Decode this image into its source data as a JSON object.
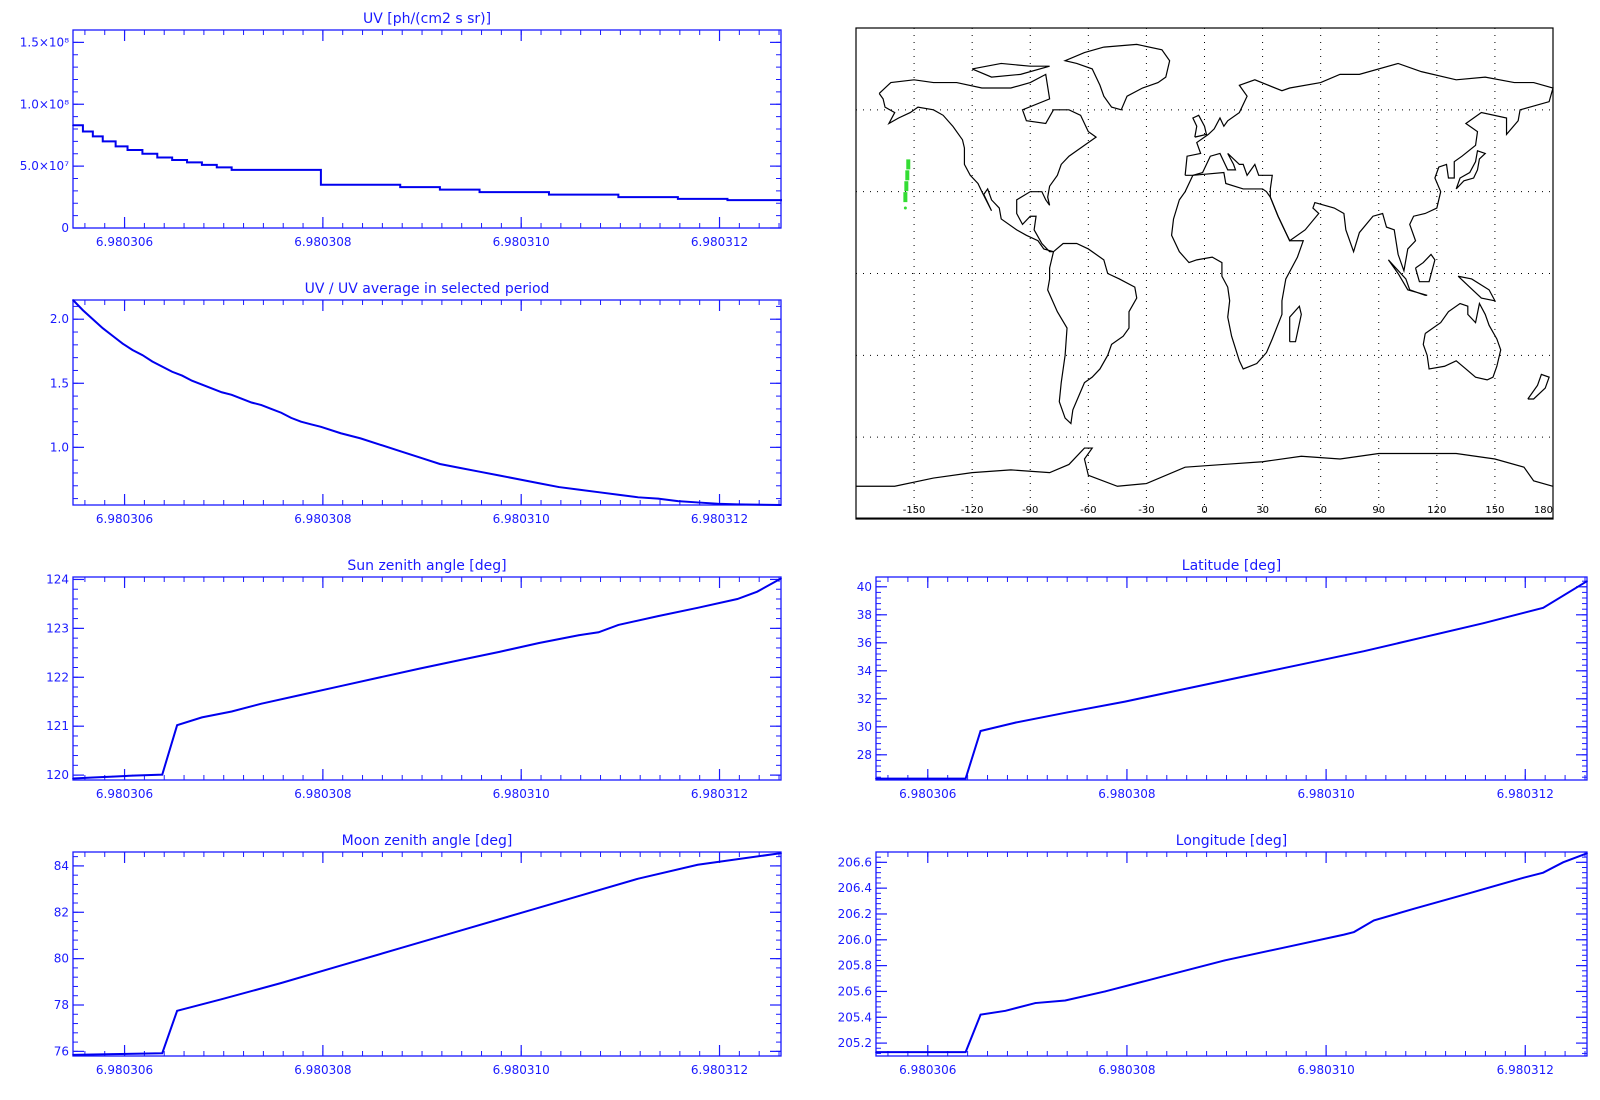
{
  "chart_data": [
    {
      "id": "uv",
      "type": "line",
      "title": "UV [ph/(cm2 s sr)]",
      "xlim": [
        6.98030548,
        6.98031262
      ],
      "ylim": [
        0,
        160000000
      ],
      "xticks": [
        6.980306,
        6.980308,
        6.98031,
        6.980312
      ],
      "xtick_labels": [
        "6.980306",
        "6.980308",
        "6.980310",
        "6.980312"
      ],
      "yticks": [
        0,
        50000000,
        100000000,
        150000000
      ],
      "ytick_labels": [
        "0",
        "5.0×10⁷",
        "1.0×10⁸",
        "1.5×10⁸"
      ],
      "step": true,
      "series": [
        {
          "values": [
            [
              6.98030548,
              83000000
            ],
            [
              6.98030558,
              78000000
            ],
            [
              6.98030568,
              74000000
            ],
            [
              6.98030578,
              70000000
            ],
            [
              6.98030591,
              66000000
            ],
            [
              6.98030603,
              63000000
            ],
            [
              6.98030618,
              60000000
            ],
            [
              6.98030633,
              57000000
            ],
            [
              6.98030648,
              55000000
            ],
            [
              6.98030663,
              53000000
            ],
            [
              6.98030678,
              51000000
            ],
            [
              6.98030693,
              49000000
            ],
            [
              6.98030708,
              47000000
            ],
            [
              6.98030798,
              35000000
            ],
            [
              6.98030878,
              33000000
            ],
            [
              6.98030918,
              31000000
            ],
            [
              6.98030958,
              29000000
            ],
            [
              6.98031028,
              27000000
            ],
            [
              6.98031098,
              25000000
            ],
            [
              6.98031158,
              23500000
            ],
            [
              6.98031208,
              22500000
            ],
            [
              6.98031262,
              22000000
            ]
          ]
        }
      ]
    },
    {
      "id": "uv_ratio",
      "type": "line",
      "title": "UV / UV average in selected period",
      "xlim": [
        6.98030548,
        6.98031262
      ],
      "ylim": [
        0.55,
        2.15
      ],
      "xticks": [
        6.980306,
        6.980308,
        6.98031,
        6.980312
      ],
      "xtick_labels": [
        "6.980306",
        "6.980308",
        "6.980310",
        "6.980312"
      ],
      "yticks": [
        1.0,
        1.5,
        2.0
      ],
      "ytick_labels": [
        "1.0",
        "1.5",
        "2.0"
      ],
      "series": [
        {
          "values": [
            [
              6.98030548,
              2.15
            ],
            [
              6.98030558,
              2.07
            ],
            [
              6.98030568,
              2.0
            ],
            [
              6.98030578,
              1.93
            ],
            [
              6.98030588,
              1.87
            ],
            [
              6.98030598,
              1.81
            ],
            [
              6.98030608,
              1.76
            ],
            [
              6.98030618,
              1.72
            ],
            [
              6.98030628,
              1.67
            ],
            [
              6.98030638,
              1.63
            ],
            [
              6.98030648,
              1.59
            ],
            [
              6.98030658,
              1.56
            ],
            [
              6.98030668,
              1.52
            ],
            [
              6.98030678,
              1.49
            ],
            [
              6.98030688,
              1.46
            ],
            [
              6.98030698,
              1.43
            ],
            [
              6.98030708,
              1.41
            ],
            [
              6.98030718,
              1.38
            ],
            [
              6.98030728,
              1.35
            ],
            [
              6.98030738,
              1.33
            ],
            [
              6.98030748,
              1.3
            ],
            [
              6.98030758,
              1.27
            ],
            [
              6.98030768,
              1.23
            ],
            [
              6.98030778,
              1.2
            ],
            [
              6.98030788,
              1.18
            ],
            [
              6.98030798,
              1.16
            ],
            [
              6.98030818,
              1.11
            ],
            [
              6.98030838,
              1.07
            ],
            [
              6.98030858,
              1.02
            ],
            [
              6.98030878,
              0.97
            ],
            [
              6.98030898,
              0.92
            ],
            [
              6.98030918,
              0.87
            ],
            [
              6.98030938,
              0.84
            ],
            [
              6.98030958,
              0.81
            ],
            [
              6.98030978,
              0.78
            ],
            [
              6.98030998,
              0.75
            ],
            [
              6.98031018,
              0.72
            ],
            [
              6.98031038,
              0.69
            ],
            [
              6.98031058,
              0.67
            ],
            [
              6.98031078,
              0.65
            ],
            [
              6.98031098,
              0.63
            ],
            [
              6.98031118,
              0.61
            ],
            [
              6.98031138,
              0.6
            ],
            [
              6.98031158,
              0.58
            ],
            [
              6.98031178,
              0.57
            ],
            [
              6.98031198,
              0.56
            ],
            [
              6.98031218,
              0.555
            ],
            [
              6.98031262,
              0.55
            ]
          ]
        }
      ]
    },
    {
      "id": "sun_zenith",
      "type": "line",
      "title": "Sun zenith angle [deg]",
      "xlim": [
        6.98030548,
        6.98031262
      ],
      "ylim": [
        119.9,
        124.05
      ],
      "xticks": [
        6.980306,
        6.980308,
        6.98031,
        6.980312
      ],
      "xtick_labels": [
        "6.980306",
        "6.980308",
        "6.980310",
        "6.980312"
      ],
      "yticks": [
        120,
        121,
        122,
        123,
        124
      ],
      "ytick_labels": [
        "120",
        "121",
        "122",
        "123",
        "124"
      ],
      "series": [
        {
          "values": [
            [
              6.98030548,
              119.93
            ],
            [
              6.98030568,
              119.95
            ],
            [
              6.98030588,
              119.97
            ],
            [
              6.98030608,
              119.99
            ],
            [
              6.98030638,
              120.01
            ],
            [
              6.98030653,
              121.02
            ],
            [
              6.98030678,
              121.18
            ],
            [
              6.98030708,
              121.3
            ],
            [
              6.98030738,
              121.46
            ],
            [
              6.98030778,
              121.64
            ],
            [
              6.98030818,
              121.82
            ],
            [
              6.98030858,
              122.0
            ],
            [
              6.98030898,
              122.18
            ],
            [
              6.98030938,
              122.35
            ],
            [
              6.98030978,
              122.52
            ],
            [
              6.98031018,
              122.7
            ],
            [
              6.98031058,
              122.86
            ],
            [
              6.98031078,
              122.92
            ],
            [
              6.98031098,
              123.07
            ],
            [
              6.98031138,
              123.25
            ],
            [
              6.98031178,
              123.42
            ],
            [
              6.98031218,
              123.6
            ],
            [
              6.98031238,
              123.75
            ],
            [
              6.98031262,
              124.02
            ]
          ]
        }
      ]
    },
    {
      "id": "latitude",
      "type": "line",
      "title": "Latitude [deg]",
      "xlim": [
        6.98030548,
        6.98031262
      ],
      "ylim": [
        26.2,
        40.7
      ],
      "xticks": [
        6.980306,
        6.980308,
        6.98031,
        6.980312
      ],
      "xtick_labels": [
        "6.980306",
        "6.980308",
        "6.980310",
        "6.980312"
      ],
      "yticks": [
        28,
        30,
        32,
        34,
        36,
        38,
        40
      ],
      "ytick_labels": [
        "28",
        "30",
        "32",
        "34",
        "36",
        "38",
        "40"
      ],
      "series": [
        {
          "values": [
            [
              6.98030548,
              26.3
            ],
            [
              6.98030638,
              26.3
            ],
            [
              6.98030653,
              29.7
            ],
            [
              6.98030688,
              30.3
            ],
            [
              6.98030738,
              31.0
            ],
            [
              6.98030798,
              31.8
            ],
            [
              6.98030858,
              32.7
            ],
            [
              6.98030918,
              33.6
            ],
            [
              6.98030978,
              34.5
            ],
            [
              6.98031038,
              35.4
            ],
            [
              6.98031098,
              36.4
            ],
            [
              6.98031158,
              37.4
            ],
            [
              6.98031218,
              38.5
            ],
            [
              6.98031262,
              40.4
            ]
          ]
        }
      ]
    },
    {
      "id": "moon_zenith",
      "type": "line",
      "title": "Moon zenith angle [deg]",
      "xlim": [
        6.98030548,
        6.98031262
      ],
      "ylim": [
        75.8,
        84.6
      ],
      "xticks": [
        6.980306,
        6.980308,
        6.98031,
        6.980312
      ],
      "xtick_labels": [
        "6.980306",
        "6.980308",
        "6.980310",
        "6.980312"
      ],
      "yticks": [
        76,
        78,
        80,
        82,
        84
      ],
      "ytick_labels": [
        "76",
        "78",
        "80",
        "82",
        "84"
      ],
      "series": [
        {
          "values": [
            [
              6.98030548,
              75.85
            ],
            [
              6.98030588,
              75.88
            ],
            [
              6.98030638,
              75.92
            ],
            [
              6.98030653,
              77.75
            ],
            [
              6.98030698,
              78.25
            ],
            [
              6.98030758,
              78.95
            ],
            [
              6.98030818,
              79.7
            ],
            [
              6.98030878,
              80.45
            ],
            [
              6.98030938,
              81.2
            ],
            [
              6.98030998,
              81.95
            ],
            [
              6.98031058,
              82.7
            ],
            [
              6.98031118,
              83.45
            ],
            [
              6.98031178,
              84.05
            ],
            [
              6.98031262,
              84.55
            ]
          ]
        }
      ]
    },
    {
      "id": "longitude",
      "type": "line",
      "title": "Longitude [deg]",
      "xlim": [
        6.98030548,
        6.98031262
      ],
      "ylim": [
        205.1,
        206.68
      ],
      "xticks": [
        6.980306,
        6.980308,
        6.98031,
        6.980312
      ],
      "xtick_labels": [
        "6.980306",
        "6.980308",
        "6.980310",
        "6.980312"
      ],
      "yticks": [
        205.2,
        205.4,
        205.6,
        205.8,
        206.0,
        206.2,
        206.4,
        206.6
      ],
      "ytick_labels": [
        "205.2",
        "205.4",
        "205.6",
        "205.8",
        "206.0",
        "206.2",
        "206.4",
        "206.6"
      ],
      "series": [
        {
          "values": [
            [
              6.98030548,
              205.13
            ],
            [
              6.98030638,
              205.13
            ],
            [
              6.98030653,
              205.42
            ],
            [
              6.98030678,
              205.45
            ],
            [
              6.98030708,
              205.51
            ],
            [
              6.98030738,
              205.53
            ],
            [
              6.98030778,
              205.6
            ],
            [
              6.98030838,
              205.72
            ],
            [
              6.98030898,
              205.84
            ],
            [
              6.98030958,
              205.94
            ],
            [
              6.98031018,
              206.04
            ],
            [
              6.98031028,
              206.06
            ],
            [
              6.98031048,
              206.15
            ],
            [
              6.98031088,
              206.24
            ],
            [
              6.98031148,
              206.37
            ],
            [
              6.98031198,
              206.48
            ],
            [
              6.98031218,
              206.52
            ],
            [
              6.98031238,
              206.6
            ],
            [
              6.98031262,
              206.67
            ]
          ]
        }
      ]
    }
  ],
  "map": {
    "xtick_labels": [
      "-150",
      "-120",
      "-90",
      "-60",
      "-30",
      "0",
      "30",
      "60",
      "90",
      "120",
      "150",
      "180"
    ],
    "track_color": "#33dd33",
    "coast_color": "#000000",
    "track": [
      [
        -153,
        40
      ],
      [
        -153.5,
        36
      ],
      [
        -154,
        32
      ],
      [
        -154.5,
        28
      ]
    ]
  },
  "colors": {
    "axis": "#1a1aff",
    "line": "#0000ee"
  }
}
